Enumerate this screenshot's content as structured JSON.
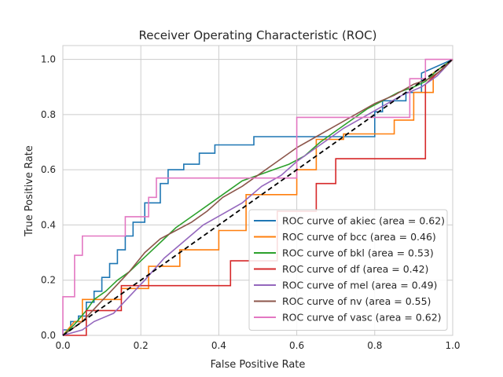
{
  "chart_data": {
    "type": "line",
    "title": "Receiver Operating Characteristic (ROC)",
    "xlabel": "False Positive Rate",
    "ylabel": "True Positive Rate",
    "xlim": [
      0,
      1
    ],
    "ylim": [
      0,
      1.05
    ],
    "xticks": [
      "0.0",
      "0.2",
      "0.4",
      "0.6",
      "0.8",
      "1.0"
    ],
    "yticks": [
      "0.0",
      "0.2",
      "0.4",
      "0.6",
      "0.8",
      "1.0"
    ],
    "grid": true,
    "legend_position": "lower-right",
    "reference_line": {
      "x": [
        0,
        1
      ],
      "y": [
        0,
        1
      ],
      "color": "#000000",
      "style": "dashed"
    },
    "series": [
      {
        "name": "ROC curve of akiec (area = 0.62)",
        "color": "#1f77b4",
        "x": [
          0,
          0,
          0.02,
          0.02,
          0.04,
          0.04,
          0.06,
          0.06,
          0.08,
          0.08,
          0.1,
          0.1,
          0.12,
          0.12,
          0.14,
          0.14,
          0.16,
          0.16,
          0.18,
          0.18,
          0.21,
          0.21,
          0.25,
          0.25,
          0.27,
          0.27,
          0.31,
          0.31,
          0.35,
          0.35,
          0.39,
          0.39,
          0.49,
          0.49,
          0.55,
          0.55,
          0.63,
          0.63,
          0.8,
          0.8,
          0.82,
          0.82,
          0.88,
          0.88,
          0.92,
          0.92,
          1.0
        ],
        "y": [
          0,
          0.02,
          0.02,
          0.05,
          0.05,
          0.07,
          0.07,
          0.12,
          0.12,
          0.16,
          0.16,
          0.21,
          0.21,
          0.26,
          0.26,
          0.31,
          0.31,
          0.36,
          0.36,
          0.41,
          0.41,
          0.48,
          0.48,
          0.55,
          0.55,
          0.6,
          0.6,
          0.62,
          0.62,
          0.66,
          0.66,
          0.69,
          0.69,
          0.72,
          0.72,
          0.72,
          0.72,
          0.72,
          0.72,
          0.81,
          0.81,
          0.85,
          0.85,
          0.88,
          0.88,
          0.95,
          1.0
        ]
      },
      {
        "name": "ROC curve of bcc (area = 0.46)",
        "color": "#ff7f0e",
        "x": [
          0,
          0.03,
          0.05,
          0.05,
          0.15,
          0.15,
          0.22,
          0.22,
          0.3,
          0.3,
          0.4,
          0.4,
          0.47,
          0.47,
          0.55,
          0.55,
          0.6,
          0.6,
          0.65,
          0.65,
          0.72,
          0.72,
          0.85,
          0.85,
          0.9,
          0.9,
          0.95,
          0.95,
          1.0
        ],
        "y": [
          0,
          0.05,
          0.05,
          0.13,
          0.13,
          0.17,
          0.17,
          0.25,
          0.25,
          0.31,
          0.31,
          0.38,
          0.38,
          0.51,
          0.51,
          0.51,
          0.51,
          0.6,
          0.6,
          0.71,
          0.71,
          0.73,
          0.73,
          0.78,
          0.78,
          0.88,
          0.88,
          0.95,
          1.0
        ]
      },
      {
        "name": "ROC curve of bkl (area = 0.53)",
        "color": "#2ca02c",
        "x": [
          0,
          0.03,
          0.06,
          0.08,
          0.11,
          0.14,
          0.17,
          0.2,
          0.23,
          0.26,
          0.29,
          0.32,
          0.35,
          0.38,
          0.42,
          0.46,
          0.5,
          0.54,
          0.58,
          0.62,
          0.66,
          0.7,
          0.74,
          0.78,
          0.82,
          0.86,
          0.9,
          0.93,
          0.96,
          1.0
        ],
        "y": [
          0,
          0.04,
          0.09,
          0.13,
          0.16,
          0.2,
          0.23,
          0.27,
          0.31,
          0.35,
          0.39,
          0.42,
          0.45,
          0.48,
          0.52,
          0.56,
          0.58,
          0.6,
          0.62,
          0.65,
          0.7,
          0.74,
          0.78,
          0.82,
          0.85,
          0.88,
          0.9,
          0.92,
          0.96,
          1.0
        ]
      },
      {
        "name": "ROC curve of df (area = 0.42)",
        "color": "#d62728",
        "x": [
          0,
          0.06,
          0.06,
          0.15,
          0.15,
          0.24,
          0.24,
          0.43,
          0.43,
          0.55,
          0.55,
          0.65,
          0.65,
          0.7,
          0.7,
          0.93,
          0.93,
          1.0
        ],
        "y": [
          0,
          0,
          0.09,
          0.09,
          0.18,
          0.18,
          0.18,
          0.18,
          0.27,
          0.27,
          0.45,
          0.45,
          0.55,
          0.55,
          0.64,
          0.64,
          0.91,
          1.0
        ]
      },
      {
        "name": "ROC curve of mel (area = 0.49)",
        "color": "#9467bd",
        "x": [
          0,
          0.05,
          0.08,
          0.13,
          0.17,
          0.21,
          0.26,
          0.31,
          0.36,
          0.41,
          0.46,
          0.51,
          0.56,
          0.6,
          0.64,
          0.68,
          0.72,
          0.77,
          0.82,
          0.87,
          0.92,
          0.96,
          1.0
        ],
        "y": [
          0,
          0.02,
          0.05,
          0.08,
          0.14,
          0.2,
          0.28,
          0.34,
          0.4,
          0.44,
          0.48,
          0.54,
          0.58,
          0.63,
          0.67,
          0.71,
          0.75,
          0.79,
          0.83,
          0.87,
          0.9,
          0.94,
          1.0
        ]
      },
      {
        "name": "ROC curve of nv (area = 0.55)",
        "color": "#8c564b",
        "x": [
          0,
          0.05,
          0.09,
          0.13,
          0.17,
          0.21,
          0.25,
          0.29,
          0.33,
          0.37,
          0.41,
          0.46,
          0.5,
          0.55,
          0.6,
          0.65,
          0.7,
          0.75,
          0.8,
          0.85,
          0.9,
          0.94,
          0.97,
          1.0
        ],
        "y": [
          0,
          0.05,
          0.11,
          0.17,
          0.23,
          0.3,
          0.35,
          0.38,
          0.41,
          0.45,
          0.5,
          0.54,
          0.58,
          0.63,
          0.68,
          0.72,
          0.76,
          0.8,
          0.84,
          0.87,
          0.91,
          0.93,
          0.96,
          1.0
        ]
      },
      {
        "name": "ROC curve of vasc (area = 0.62)",
        "color": "#e377c2",
        "x": [
          0,
          0,
          0.03,
          0.03,
          0.05,
          0.05,
          0.16,
          0.16,
          0.22,
          0.22,
          0.24,
          0.24,
          0.55,
          0.55,
          0.6,
          0.6,
          0.63,
          0.63,
          0.75,
          0.75,
          0.89,
          0.89,
          0.93,
          0.93,
          0.97,
          0.97,
          1.0
        ],
        "y": [
          0,
          0.14,
          0.14,
          0.29,
          0.29,
          0.36,
          0.36,
          0.43,
          0.43,
          0.5,
          0.5,
          0.57,
          0.57,
          0.57,
          0.57,
          0.79,
          0.79,
          0.79,
          0.79,
          0.79,
          0.79,
          0.93,
          0.93,
          1.0,
          1.0,
          1.0,
          1.0
        ]
      }
    ]
  }
}
